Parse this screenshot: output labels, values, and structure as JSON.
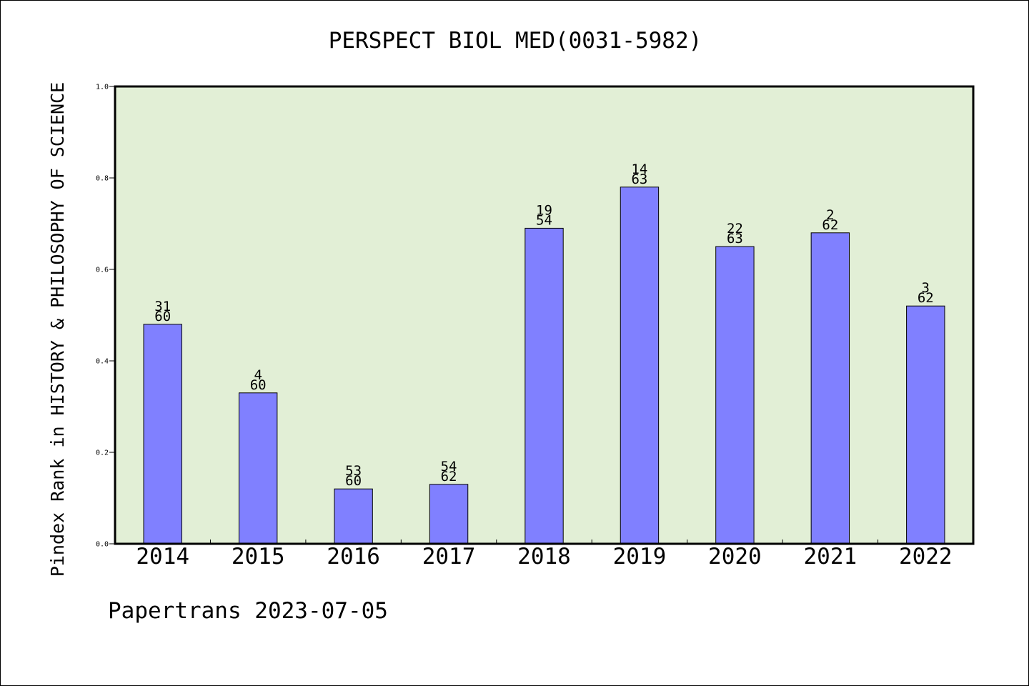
{
  "chart_data": {
    "type": "bar",
    "title": "PERSPECT BIOL MED(0031-5982)",
    "xlabel": "",
    "ylabel": "Pindex Rank in HISTORY & PHILOSOPHY OF SCIENCE",
    "categories": [
      "2014",
      "2015",
      "2016",
      "2017",
      "2018",
      "2019",
      "2020",
      "2021",
      "2022"
    ],
    "values": [
      0.48,
      0.33,
      0.12,
      0.13,
      0.69,
      0.78,
      0.65,
      0.68,
      0.52
    ],
    "data_labels": [
      {
        "rank": "31",
        "total": "60"
      },
      {
        "rank": "4",
        "total": "60"
      },
      {
        "rank": "53",
        "total": "60"
      },
      {
        "rank": "54",
        "total": "62"
      },
      {
        "rank": "19",
        "total": "54"
      },
      {
        "rank": "14",
        "total": "63"
      },
      {
        "rank": "22",
        "total": "63"
      },
      {
        "rank": "2",
        "total": "62"
      },
      {
        "rank": "3",
        "total": "62"
      }
    ],
    "ylim": [
      0,
      1.0
    ],
    "yticks": [
      "0.0",
      "0.2",
      "0.4",
      "0.6",
      "0.8",
      "1.0"
    ],
    "grid": false,
    "colors": {
      "bar": "#8080ff",
      "plot_background": "#e2efd6",
      "axes": "#000000"
    }
  },
  "footer": "Papertrans 2023-07-05"
}
